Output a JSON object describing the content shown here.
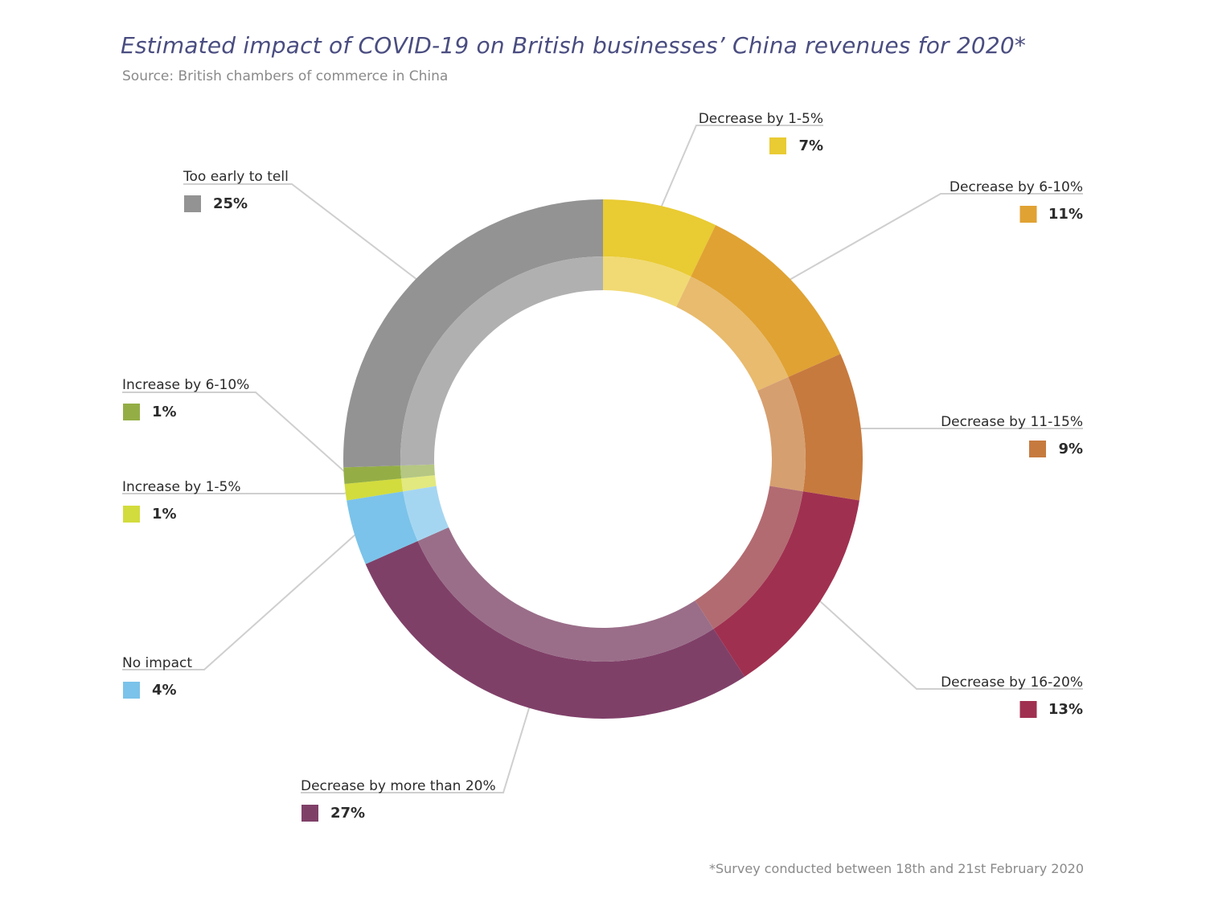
{
  "title": "Estimated impact of COVID-19 on British businesses’ China revenues for 2020*",
  "subtitle": "Source: British chambers of commerce in China",
  "footnote": "*Survey conducted between 18th and 21st February 2020",
  "chart_data": {
    "type": "pie",
    "style": "donut",
    "legend_placement": "callout labels around ring",
    "slices": [
      {
        "name": "Decrease by 1-5%",
        "value": 7,
        "label": "7%",
        "color": "#e9cb33",
        "inner_color": "#f1da74",
        "side": "right"
      },
      {
        "name": "Decrease by 6-10%",
        "value": 11,
        "label": "11%",
        "color": "#e0a233",
        "inner_color": "#e8bb6e",
        "side": "right"
      },
      {
        "name": "Decrease by 11-15%",
        "value": 9,
        "label": "9%",
        "color": "#c77a3e",
        "inner_color": "#d69f70",
        "side": "right"
      },
      {
        "name": "Decrease by 16-20%",
        "value": 13,
        "label": "13%",
        "color": "#a03050",
        "inner_color": "#b26b71",
        "side": "right"
      },
      {
        "name": "Decrease by more than 20%",
        "value": 27,
        "label": "27%",
        "color": "#7f4068",
        "inner_color": "#9a6e89",
        "side": "left"
      },
      {
        "name": "No impact",
        "value": 4,
        "label": "4%",
        "color": "#7bc3ea",
        "inner_color": "#a5d6f1",
        "side": "left"
      },
      {
        "name": "Increase by 1-5%",
        "value": 1,
        "label": "1%",
        "color": "#d2dc3d",
        "inner_color": "#e2e97e",
        "side": "left"
      },
      {
        "name": "Increase by 6-10%",
        "value": 1,
        "label": "1%",
        "color": "#94ae45",
        "inner_color": "#b5c782",
        "side": "left"
      },
      {
        "name": "Too early to tell",
        "value": 25,
        "label": "25%",
        "color": "#939393",
        "inner_color": "#b0b0b0",
        "side": "left"
      }
    ],
    "label_text_color": "#2b2b2b",
    "leader_line_color": "#cfcfcf"
  }
}
